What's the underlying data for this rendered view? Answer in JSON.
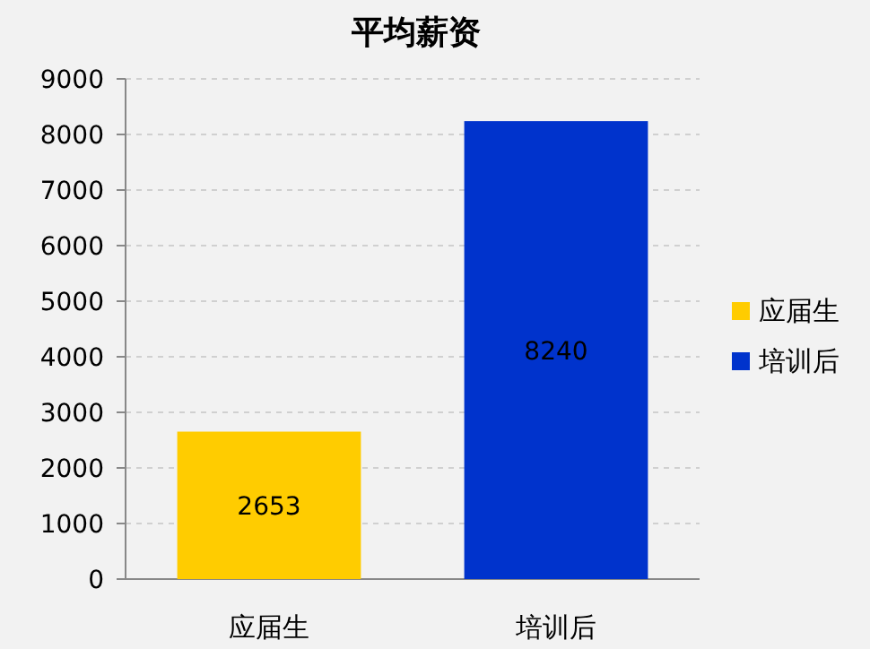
{
  "chart_data": {
    "type": "bar",
    "title": "平均薪资",
    "categories": [
      "应届生",
      "培训后"
    ],
    "series": [
      {
        "name": "应届生",
        "color": "#ffcc00",
        "values": [
          2653,
          null
        ]
      },
      {
        "name": "培训后",
        "color": "#0033cc",
        "values": [
          null,
          8240
        ]
      }
    ],
    "ylim": [
      0,
      9000
    ],
    "yticks": [
      0,
      1000,
      2000,
      3000,
      4000,
      5000,
      6000,
      7000,
      8000,
      9000
    ],
    "grid": "y",
    "legend": "right",
    "data_labels": true
  }
}
